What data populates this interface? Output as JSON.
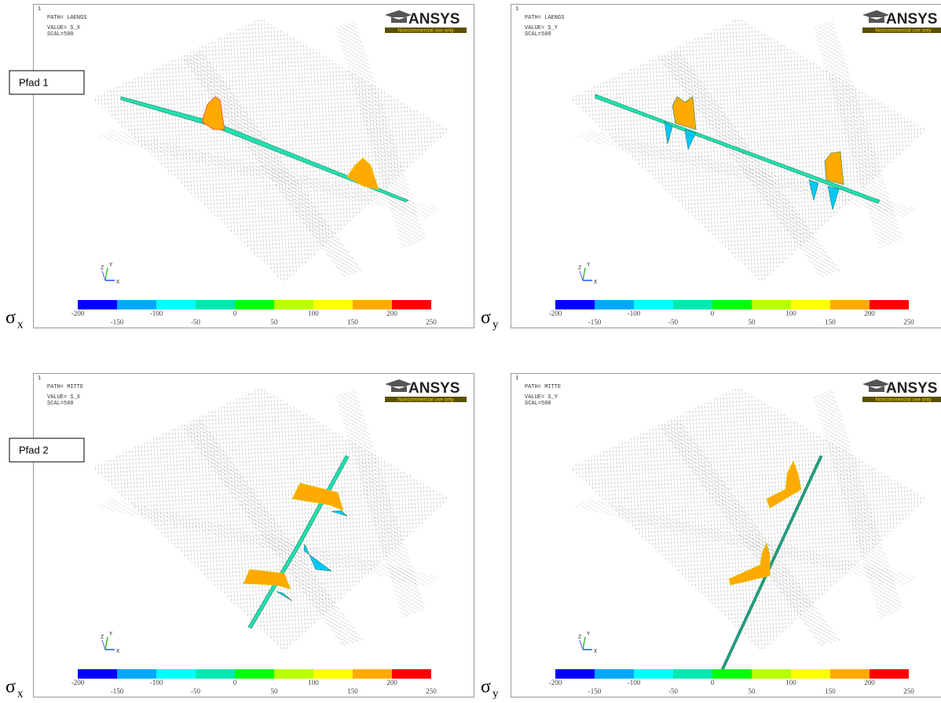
{
  "pfad_labels": [
    "Pfad 1",
    "Pfad 2"
  ],
  "panels": [
    {
      "panel_number": "1",
      "path": "PATH= LAENGS",
      "value": "VALUE= S_X",
      "scal": "SCAL=500",
      "logo": "ANSYS",
      "logo_note": "Noncommercial use only",
      "sigma": "σ",
      "sigma_sub": "x"
    },
    {
      "panel_number": "1",
      "path": "PATH= LAENGS",
      "value": "VALUE= S_Y",
      "scal": "SCAL=500",
      "logo": "ANSYS",
      "logo_note": "Noncommercial use only",
      "sigma": "σ",
      "sigma_sub": "y"
    },
    {
      "panel_number": "1",
      "path": "PATH= MITTE",
      "value": "VALUE= S_X",
      "scal": "SCAL=500",
      "logo": "ANSYS",
      "logo_note": "Noncommercial use only",
      "sigma": "σ",
      "sigma_sub": "x"
    },
    {
      "panel_number": "1",
      "path": "PATH= MITTE",
      "value": "VALUE= S_Y",
      "scal": "SCAL=500",
      "logo": "ANSYS",
      "logo_note": "Noncommercial use only",
      "sigma": "σ",
      "sigma_sub": "y"
    }
  ],
  "triad": [
    "X",
    "Y",
    "Z"
  ],
  "colorbar": {
    "labels": [
      -200,
      -150,
      -100,
      -50,
      0,
      50,
      100,
      150,
      200,
      250
    ],
    "colors": [
      "#0000ff",
      "#00a8ff",
      "#00ffff",
      "#00e8b0",
      "#00ff00",
      "#b8ff00",
      "#ffff00",
      "#ffaa00",
      "#ff0000"
    ]
  }
}
